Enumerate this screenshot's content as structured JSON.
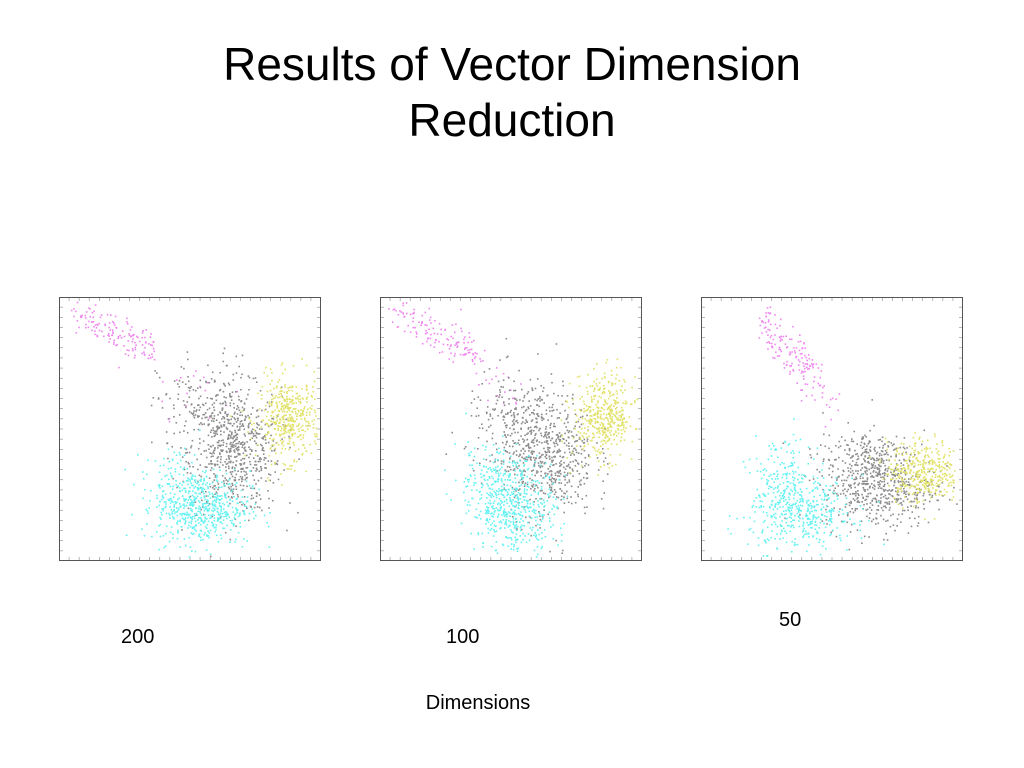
{
  "slide": {
    "title_line1": "Results of Vector Dimension",
    "title_line2": "Reduction"
  },
  "chart_data": {
    "type": "scatter",
    "xlabel": "Dimensions",
    "grid": false,
    "legend": "none",
    "series_colors": {
      "magenta": "#ee88ee",
      "gray": "#8c8c8c",
      "yellow": "#e2e26a",
      "cyan": "#66f2f2"
    },
    "panels": [
      {
        "label": "200",
        "clusters": [
          {
            "color": "magenta",
            "shape": "band",
            "from": [
              0.04,
              0.96
            ],
            "to": [
              0.36,
              0.8
            ],
            "width": 0.035,
            "count": 140
          },
          {
            "color": "magenta",
            "shape": "blob",
            "center": [
              0.5,
              0.67
            ],
            "spread": [
              0.08,
              0.06
            ],
            "count": 18
          },
          {
            "color": "gray",
            "shape": "blob",
            "center": [
              0.67,
              0.42
            ],
            "spread": [
              0.09,
              0.12
            ],
            "count": 620
          },
          {
            "color": "gray",
            "shape": "blob",
            "center": [
              0.55,
              0.58
            ],
            "spread": [
              0.09,
              0.1
            ],
            "count": 160
          },
          {
            "color": "yellow",
            "shape": "blob",
            "center": [
              0.88,
              0.54
            ],
            "spread": [
              0.06,
              0.08
            ],
            "count": 430
          },
          {
            "color": "cyan",
            "shape": "blob",
            "center": [
              0.55,
              0.2
            ],
            "spread": [
              0.09,
              0.07
            ],
            "count": 520
          },
          {
            "color": "cyan",
            "shape": "blob",
            "center": [
              0.44,
              0.28
            ],
            "spread": [
              0.06,
              0.08
            ],
            "count": 120
          }
        ]
      },
      {
        "label": "100",
        "clusters": [
          {
            "color": "magenta",
            "shape": "band",
            "from": [
              0.04,
              0.96
            ],
            "to": [
              0.38,
              0.78
            ],
            "width": 0.035,
            "count": 140
          },
          {
            "color": "magenta",
            "shape": "blob",
            "center": [
              0.47,
              0.66
            ],
            "spread": [
              0.07,
              0.05
            ],
            "count": 18
          },
          {
            "color": "gray",
            "shape": "blob",
            "center": [
              0.64,
              0.4
            ],
            "spread": [
              0.09,
              0.12
            ],
            "count": 560
          },
          {
            "color": "gray",
            "shape": "blob",
            "center": [
              0.52,
              0.52
            ],
            "spread": [
              0.1,
              0.1
            ],
            "count": 200
          },
          {
            "color": "yellow",
            "shape": "blob",
            "center": [
              0.86,
              0.55
            ],
            "spread": [
              0.06,
              0.08
            ],
            "count": 420
          },
          {
            "color": "cyan",
            "shape": "blob",
            "center": [
              0.51,
              0.2
            ],
            "spread": [
              0.08,
              0.09
            ],
            "count": 500
          },
          {
            "color": "cyan",
            "shape": "blob",
            "center": [
              0.41,
              0.32
            ],
            "spread": [
              0.07,
              0.08
            ],
            "count": 120
          }
        ]
      },
      {
        "label": "50",
        "clusters": [
          {
            "color": "magenta",
            "shape": "band",
            "from": [
              0.22,
              0.92
            ],
            "to": [
              0.44,
              0.68
            ],
            "width": 0.04,
            "count": 150
          },
          {
            "color": "magenta",
            "shape": "blob",
            "center": [
              0.5,
              0.62
            ],
            "spread": [
              0.05,
              0.05
            ],
            "count": 14
          },
          {
            "color": "gray",
            "shape": "blob",
            "center": [
              0.68,
              0.28
            ],
            "spread": [
              0.11,
              0.08
            ],
            "count": 520
          },
          {
            "color": "gray",
            "shape": "blob",
            "center": [
              0.62,
              0.4
            ],
            "spread": [
              0.09,
              0.06
            ],
            "count": 160
          },
          {
            "color": "yellow",
            "shape": "blob",
            "center": [
              0.85,
              0.34
            ],
            "spread": [
              0.07,
              0.06
            ],
            "count": 380
          },
          {
            "color": "cyan",
            "shape": "blob",
            "center": [
              0.38,
              0.18
            ],
            "spread": [
              0.1,
              0.07
            ],
            "count": 420
          },
          {
            "color": "cyan",
            "shape": "blob",
            "center": [
              0.3,
              0.32
            ],
            "spread": [
              0.06,
              0.08
            ],
            "count": 120
          }
        ]
      }
    ]
  }
}
